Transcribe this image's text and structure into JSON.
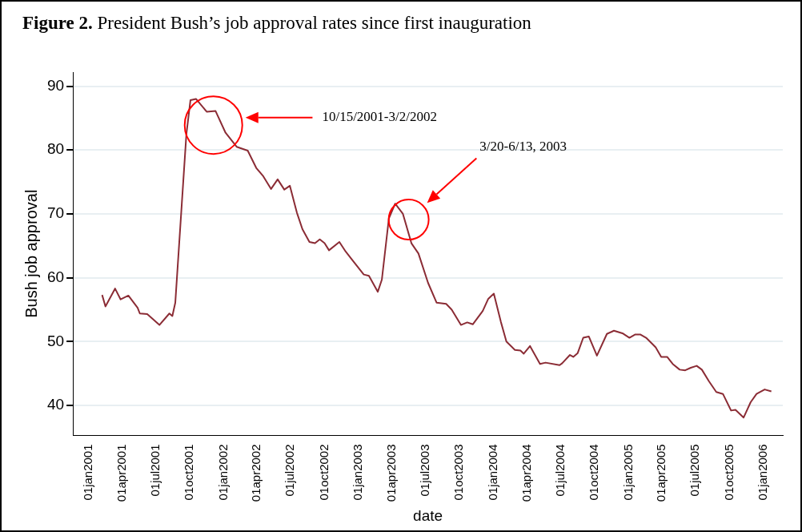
{
  "chart_data": {
    "type": "line",
    "title": "Figure 2. President Bush’s job approval rates since first inauguration",
    "xlabel": "date",
    "ylabel": "Bush job approval",
    "xlim": [
      "2000-11-19",
      "2006-02-22"
    ],
    "ylim": [
      35.3,
      92.2
    ],
    "yticks": [
      40,
      50,
      60,
      70,
      80,
      90
    ],
    "xticks": [
      {
        "value": "2001-01-01",
        "label": "01jan2001"
      },
      {
        "value": "2001-04-01",
        "label": "01apr2001"
      },
      {
        "value": "2001-07-01",
        "label": "01jul2001"
      },
      {
        "value": "2001-10-01",
        "label": "01oct2001"
      },
      {
        "value": "2002-01-01",
        "label": "01jan2002"
      },
      {
        "value": "2002-04-01",
        "label": "01apr2002"
      },
      {
        "value": "2002-07-01",
        "label": "01jul2002"
      },
      {
        "value": "2002-10-01",
        "label": "01oct2002"
      },
      {
        "value": "2003-01-01",
        "label": "01jan2003"
      },
      {
        "value": "2003-04-01",
        "label": "01apr2003"
      },
      {
        "value": "2003-07-01",
        "label": "01jul2003"
      },
      {
        "value": "2003-10-01",
        "label": "01oct2003"
      },
      {
        "value": "2004-01-01",
        "label": "01jan2004"
      },
      {
        "value": "2004-04-01",
        "label": "01apr2004"
      },
      {
        "value": "2004-07-01",
        "label": "01jul2004"
      },
      {
        "value": "2004-10-01",
        "label": "01oct2004"
      },
      {
        "value": "2005-01-01",
        "label": "01jan2005"
      },
      {
        "value": "2005-04-01",
        "label": "01apr2005"
      },
      {
        "value": "2005-07-01",
        "label": "01jul2005"
      },
      {
        "value": "2005-10-01",
        "label": "01oct2005"
      },
      {
        "value": "2006-01-01",
        "label": "01jan2006"
      }
    ],
    "grid": "y",
    "legend": false,
    "marker": "none",
    "line_style": "solid",
    "annotations": [
      "10/15/2001-3/2/2002",
      "3/20-6/13, 2003"
    ],
    "series": [
      {
        "color": "#8b2c35",
        "x": [
          "2001-02-06",
          "2001-02-15",
          "2001-03-13",
          "2001-03-28",
          "2001-04-18",
          "2001-05-13",
          "2001-05-19",
          "2001-06-08",
          "2001-07-11",
          "2001-08-07",
          "2001-08-15",
          "2001-08-23",
          "2001-09-22",
          "2001-10-03",
          "2001-10-18",
          "2001-11-16",
          "2001-12-10",
          "2002-01-06",
          "2002-02-05",
          "2002-03-07",
          "2002-03-30",
          "2002-04-18",
          "2002-05-09",
          "2002-05-27",
          "2002-06-14",
          "2002-06-29",
          "2002-07-18",
          "2002-08-02",
          "2002-08-21",
          "2002-09-05",
          "2002-09-18",
          "2002-10-01",
          "2002-10-13",
          "2002-11-10",
          "2002-11-27",
          "2002-12-16",
          "2003-01-15",
          "2003-01-29",
          "2003-02-22",
          "2003-03-05",
          "2003-03-24",
          "2003-04-10",
          "2003-05-01",
          "2003-05-24",
          "2003-06-12",
          "2003-07-08",
          "2003-07-31",
          "2003-08-26",
          "2003-09-10",
          "2003-10-05",
          "2003-10-22",
          "2003-11-06",
          "2003-12-03",
          "2003-12-18",
          "2004-01-02",
          "2004-01-21",
          "2004-02-05",
          "2004-02-28",
          "2004-03-14",
          "2004-03-23",
          "2004-04-09",
          "2004-05-06",
          "2004-05-21",
          "2004-06-28",
          "2004-07-05",
          "2004-07-26",
          "2004-08-04",
          "2004-08-16",
          "2004-08-31",
          "2004-09-15",
          "2004-10-07",
          "2004-11-03",
          "2004-11-22",
          "2004-12-15",
          "2005-01-03",
          "2005-01-18",
          "2005-02-02",
          "2005-02-17",
          "2005-03-15",
          "2005-03-30",
          "2005-04-15",
          "2005-04-30",
          "2005-05-19",
          "2005-06-03",
          "2005-06-18",
          "2005-07-04",
          "2005-07-18",
          "2005-08-06",
          "2005-08-26",
          "2005-09-13",
          "2005-10-05",
          "2005-10-17",
          "2005-11-08",
          "2005-11-27",
          "2005-12-13",
          "2006-01-04",
          "2006-01-22"
        ],
        "values": [
          57.3,
          55.5,
          58.3,
          56.6,
          57.2,
          55.3,
          54.4,
          54.3,
          52.6,
          54.4,
          54.0,
          56.1,
          82.5,
          87.8,
          88.0,
          86.0,
          86.1,
          82.7,
          80.5,
          79.9,
          77.2,
          75.9,
          73.9,
          75.4,
          73.8,
          74.4,
          70.2,
          67.6,
          65.6,
          65.4,
          66.0,
          65.4,
          64.3,
          65.6,
          64.1,
          62.7,
          60.5,
          60.3,
          57.8,
          59.7,
          69.3,
          71.6,
          70.0,
          65.4,
          63.8,
          59.2,
          56.1,
          55.9,
          55.0,
          52.6,
          53.0,
          52.7,
          54.8,
          56.7,
          57.5,
          53.1,
          50.0,
          48.7,
          48.6,
          48.1,
          49.3,
          46.5,
          46.7,
          46.3,
          46.6,
          47.9,
          47.6,
          48.2,
          50.6,
          50.8,
          47.8,
          51.2,
          51.7,
          51.3,
          50.6,
          51.1,
          51.1,
          50.6,
          49.1,
          47.6,
          47.6,
          46.5,
          45.6,
          45.5,
          45.9,
          46.2,
          45.6,
          43.8,
          42.1,
          41.8,
          39.2,
          39.3,
          38.1,
          40.5,
          41.8,
          42.5,
          42.2
        ]
      }
    ]
  }
}
